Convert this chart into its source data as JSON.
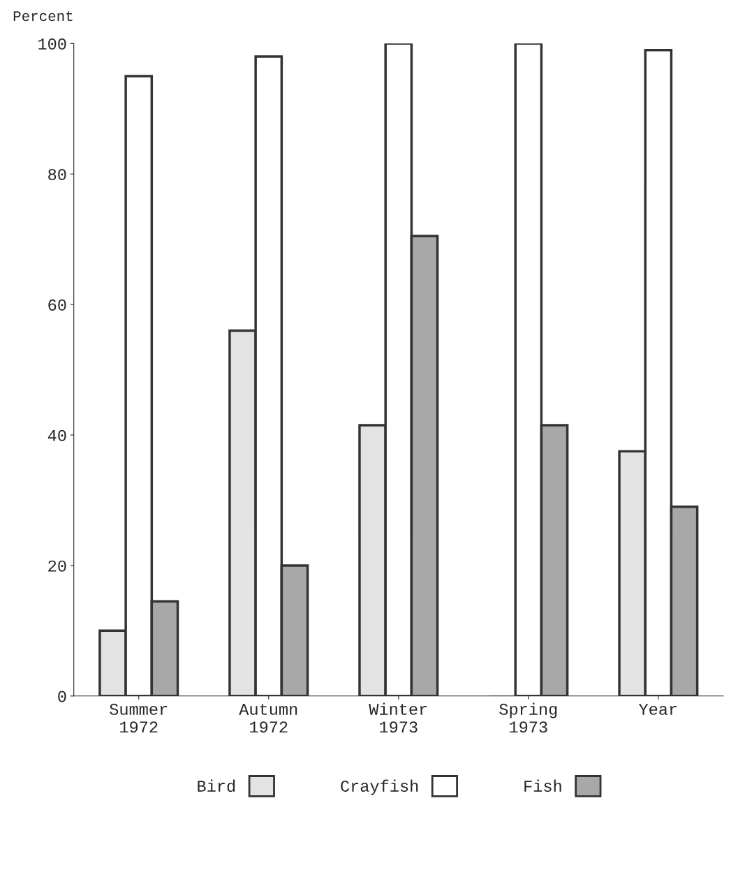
{
  "chart_data": {
    "type": "bar",
    "ylabel": "Percent",
    "categories": [
      "Summer\n1972",
      "Autumn\n1972",
      "Winter\n1973",
      "Spring\n1973",
      "Year"
    ],
    "series": [
      {
        "name": "Bird",
        "color": "#e3e3e3",
        "values": [
          10,
          56,
          41.5,
          0,
          37.5
        ]
      },
      {
        "name": "Crayfish",
        "color": "#ffffff",
        "values": [
          95,
          98,
          100,
          100,
          99
        ]
      },
      {
        "name": "Fish",
        "color": "#a8a8a8",
        "values": [
          14.5,
          20,
          70.5,
          41.5,
          29
        ]
      }
    ],
    "ylim": [
      0,
      100
    ],
    "yticks": [
      0,
      20,
      40,
      60,
      80,
      100
    ],
    "grid": false,
    "legend": "bottom"
  }
}
